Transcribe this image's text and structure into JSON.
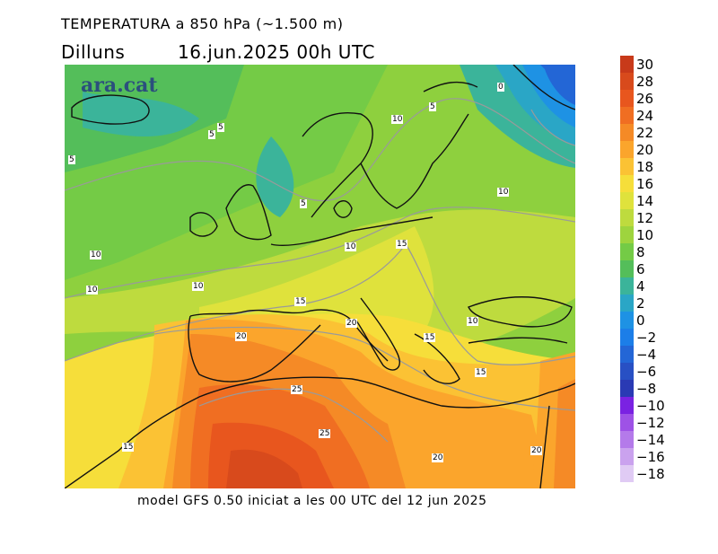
{
  "header": {
    "title": "TEMPERATURA a 850 hPa (~1.500 m)",
    "day": "Dilluns",
    "datetime": "16.jun.2025 00h UTC"
  },
  "map": {
    "logo": "ara.cat",
    "contour_labels": [
      "0",
      "5",
      "5",
      "5",
      "5",
      "5",
      "10",
      "10",
      "10",
      "10",
      "10",
      "10",
      "10",
      "15",
      "15",
      "15",
      "15",
      "15",
      "20",
      "20",
      "20",
      "20",
      "25",
      "25"
    ]
  },
  "legend": {
    "ticks": [
      "30",
      "28",
      "26",
      "24",
      "22",
      "20",
      "18",
      "16",
      "14",
      "12",
      "10",
      "8",
      "6",
      "4",
      "2",
      "0",
      "−2",
      "−4",
      "−6",
      "−8",
      "−10",
      "−12",
      "−14",
      "−16",
      "−18"
    ],
    "colors": [
      "#c83a1a",
      "#d84a1c",
      "#e8561e",
      "#f06e22",
      "#f58a26",
      "#fba52c",
      "#fbc234",
      "#f6de3a",
      "#dfe23c",
      "#bedb3e",
      "#9ed43e",
      "#74cb46",
      "#54be5a",
      "#3bb49a",
      "#2aa6c6",
      "#1e92e4",
      "#1c7ee8",
      "#2366d6",
      "#2850c4",
      "#2a3ab4",
      "#7a22e2",
      "#9e52e6",
      "#b47aea",
      "#caa2ee",
      "#e0cbf4"
    ]
  },
  "footer": {
    "caption": "model GFS 0.50 iniciat a les 00 UTC del 12 jun 2025"
  }
}
